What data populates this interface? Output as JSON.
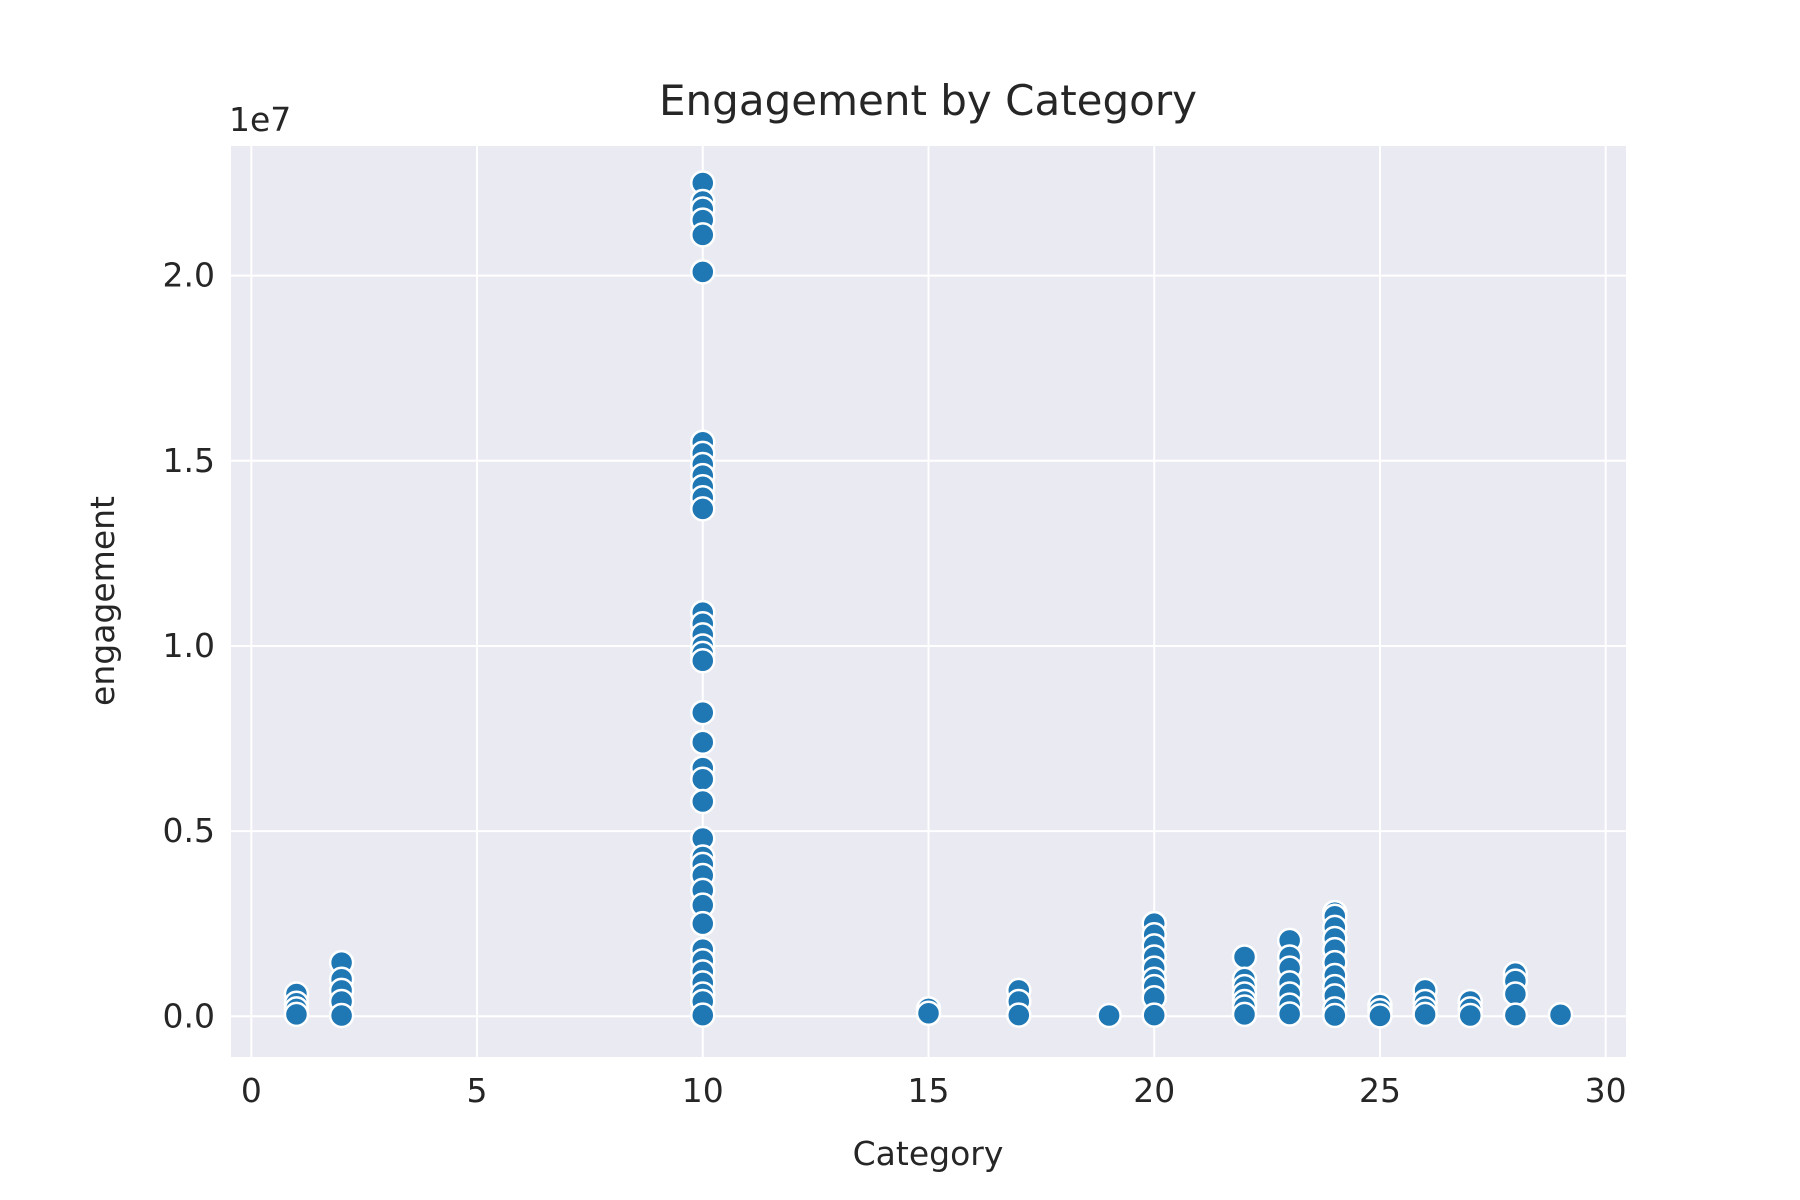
{
  "chart_data": {
    "type": "scatter",
    "title": "Engagement by Category",
    "xlabel": "Category",
    "ylabel": "engagement",
    "y_offset_label": "1e7",
    "xlim": [
      -0.45,
      30.45
    ],
    "ylim": [
      -1100000,
      23500000
    ],
    "x_ticks": [
      0,
      5,
      10,
      15,
      20,
      25,
      30
    ],
    "y_ticks": [
      0,
      5000000,
      10000000,
      15000000,
      20000000
    ],
    "y_tick_labels": [
      "0.0",
      "0.5",
      "1.0",
      "1.5",
      "2.0"
    ],
    "grid": true,
    "background": "#eaeaf2",
    "point_color": "#1f77b4",
    "points": [
      {
        "x": 1,
        "y": 600000
      },
      {
        "x": 1,
        "y": 350000
      },
      {
        "x": 1,
        "y": 200000
      },
      {
        "x": 1,
        "y": 50000
      },
      {
        "x": 2,
        "y": 1450000
      },
      {
        "x": 2,
        "y": 1000000
      },
      {
        "x": 2,
        "y": 700000
      },
      {
        "x": 2,
        "y": 400000
      },
      {
        "x": 2,
        "y": 20000
      },
      {
        "x": 10,
        "y": 22500000
      },
      {
        "x": 10,
        "y": 22000000
      },
      {
        "x": 10,
        "y": 21800000
      },
      {
        "x": 10,
        "y": 21500000
      },
      {
        "x": 10,
        "y": 21100000
      },
      {
        "x": 10,
        "y": 20100000
      },
      {
        "x": 10,
        "y": 15500000
      },
      {
        "x": 10,
        "y": 15200000
      },
      {
        "x": 10,
        "y": 14900000
      },
      {
        "x": 10,
        "y": 14600000
      },
      {
        "x": 10,
        "y": 14300000
      },
      {
        "x": 10,
        "y": 14000000
      },
      {
        "x": 10,
        "y": 13700000
      },
      {
        "x": 10,
        "y": 10900000
      },
      {
        "x": 10,
        "y": 10600000
      },
      {
        "x": 10,
        "y": 10300000
      },
      {
        "x": 10,
        "y": 10000000
      },
      {
        "x": 10,
        "y": 9800000
      },
      {
        "x": 10,
        "y": 9600000
      },
      {
        "x": 10,
        "y": 8200000
      },
      {
        "x": 10,
        "y": 7400000
      },
      {
        "x": 10,
        "y": 6700000
      },
      {
        "x": 10,
        "y": 6400000
      },
      {
        "x": 10,
        "y": 5800000
      },
      {
        "x": 10,
        "y": 4800000
      },
      {
        "x": 10,
        "y": 4300000
      },
      {
        "x": 10,
        "y": 4100000
      },
      {
        "x": 10,
        "y": 3800000
      },
      {
        "x": 10,
        "y": 3400000
      },
      {
        "x": 10,
        "y": 3000000
      },
      {
        "x": 10,
        "y": 2500000
      },
      {
        "x": 10,
        "y": 1800000
      },
      {
        "x": 10,
        "y": 1500000
      },
      {
        "x": 10,
        "y": 1200000
      },
      {
        "x": 10,
        "y": 900000
      },
      {
        "x": 10,
        "y": 600000
      },
      {
        "x": 10,
        "y": 400000
      },
      {
        "x": 10,
        "y": 30000
      },
      {
        "x": 15,
        "y": 200000
      },
      {
        "x": 15,
        "y": 80000
      },
      {
        "x": 17,
        "y": 700000
      },
      {
        "x": 17,
        "y": 400000
      },
      {
        "x": 17,
        "y": 30000
      },
      {
        "x": 19,
        "y": 20000
      },
      {
        "x": 20,
        "y": 2500000
      },
      {
        "x": 20,
        "y": 2200000
      },
      {
        "x": 20,
        "y": 1900000
      },
      {
        "x": 20,
        "y": 1600000
      },
      {
        "x": 20,
        "y": 1300000
      },
      {
        "x": 20,
        "y": 1000000
      },
      {
        "x": 20,
        "y": 800000
      },
      {
        "x": 20,
        "y": 500000
      },
      {
        "x": 20,
        "y": 30000
      },
      {
        "x": 22,
        "y": 1600000
      },
      {
        "x": 22,
        "y": 1000000
      },
      {
        "x": 22,
        "y": 800000
      },
      {
        "x": 22,
        "y": 600000
      },
      {
        "x": 22,
        "y": 400000
      },
      {
        "x": 22,
        "y": 250000
      },
      {
        "x": 22,
        "y": 50000
      },
      {
        "x": 23,
        "y": 2050000
      },
      {
        "x": 23,
        "y": 1600000
      },
      {
        "x": 23,
        "y": 1300000
      },
      {
        "x": 23,
        "y": 900000
      },
      {
        "x": 23,
        "y": 600000
      },
      {
        "x": 23,
        "y": 300000
      },
      {
        "x": 23,
        "y": 60000
      },
      {
        "x": 24,
        "y": 2800000
      },
      {
        "x": 24,
        "y": 2700000
      },
      {
        "x": 24,
        "y": 2400000
      },
      {
        "x": 24,
        "y": 2100000
      },
      {
        "x": 24,
        "y": 1800000
      },
      {
        "x": 24,
        "y": 1450000
      },
      {
        "x": 24,
        "y": 1100000
      },
      {
        "x": 24,
        "y": 800000
      },
      {
        "x": 24,
        "y": 550000
      },
      {
        "x": 24,
        "y": 200000
      },
      {
        "x": 24,
        "y": 20000
      },
      {
        "x": 25,
        "y": 300000
      },
      {
        "x": 25,
        "y": 150000
      },
      {
        "x": 25,
        "y": 10000
      },
      {
        "x": 26,
        "y": 700000
      },
      {
        "x": 26,
        "y": 400000
      },
      {
        "x": 26,
        "y": 200000
      },
      {
        "x": 26,
        "y": 50000
      },
      {
        "x": 27,
        "y": 400000
      },
      {
        "x": 27,
        "y": 200000
      },
      {
        "x": 27,
        "y": 20000
      },
      {
        "x": 28,
        "y": 1150000
      },
      {
        "x": 28,
        "y": 950000
      },
      {
        "x": 28,
        "y": 600000
      },
      {
        "x": 28,
        "y": 30000
      },
      {
        "x": 29,
        "y": 40000
      }
    ]
  }
}
